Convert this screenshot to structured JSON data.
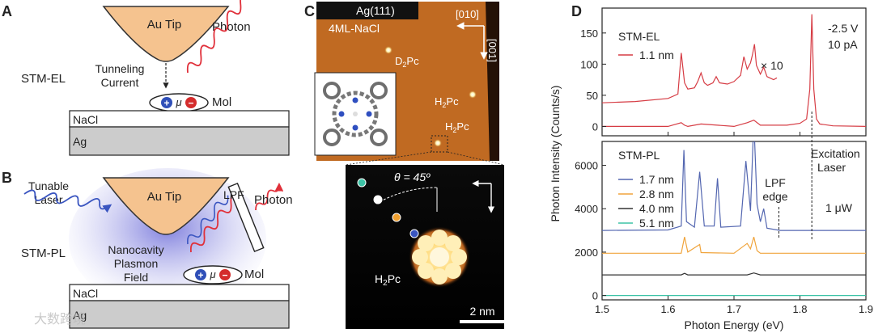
{
  "panels": {
    "A": {
      "letter": "A",
      "tip": "Au Tip",
      "photon": "Photon",
      "mode": "STM-EL",
      "tunneling_line1": "Tunneling",
      "tunneling_line2": "Current",
      "mu": "μ",
      "plus": "+",
      "minus": "−",
      "mol": "Mol",
      "nacl": "NaCl",
      "ag": "Ag"
    },
    "B": {
      "letter": "B",
      "tunable_line1": "Tunable",
      "tunable_line2": "Laser",
      "tip": "Au Tip",
      "lpf": "LPF",
      "photon": "Photon",
      "mode": "STM-PL",
      "nanocavity_line1": "Nanocavity",
      "nanocavity_line2": "Plasmon",
      "nanocavity_line3": "Field",
      "mu": "μ",
      "plus": "+",
      "minus": "−",
      "mol": "Mol",
      "nacl": "NaCl",
      "ag": "Ag"
    },
    "C": {
      "letter": "C",
      "substrate": "Ag(111)",
      "layer": "4ML-NaCl",
      "dir_x": "[010]",
      "dir_y": "[001]",
      "label_d2pc": "D",
      "label_d2pc_sub": "2",
      "label_d2pc_end": "Pc",
      "label_h2pc_a": "H",
      "label_h2pc_a_sub": "2",
      "label_h2pc_a_end": "Pc",
      "label_h2pc_b": "H",
      "label_h2pc_b_sub": "2",
      "label_h2pc_b_end": "Pc",
      "theta": "θ = 45º",
      "zoom_label": "H",
      "zoom_label_sub": "2",
      "zoom_label_end": "Pc",
      "scale_bar": "2 nm",
      "dot_colors": [
        "#3dc3a6",
        "#ffffff",
        "#f0a030",
        "#3a55c0",
        "#e0303a"
      ]
    },
    "D": {
      "letter": "D",
      "el_title": "STM-EL",
      "el_series": "1.1 nm",
      "el_conditions_1": "-2.5 V",
      "el_conditions_2": "10 pA",
      "times10": "× 10",
      "pl_title": "STM-PL",
      "pl_power": "1 μW",
      "lpf_line1": "LPF",
      "lpf_line2": "edge",
      "exc_line1": "Excitation",
      "exc_line2": "Laser",
      "ylabel": "Photon Intensity (Counts/s)",
      "xlabel": "Photon Energy (eV)"
    }
  },
  "watermark": "大数跨境",
  "chart_data": {
    "type": "line",
    "xlabel": "Photon Energy (eV)",
    "ylabel": "Photon Intensity (Counts/s)",
    "xlim": [
      1.5,
      1.9
    ],
    "x_ticks": [
      "1.5",
      "1.6",
      "1.7",
      "1.8",
      "1.9"
    ],
    "el_panel": {
      "ylim": [
        -15,
        190
      ],
      "y_ticks": [
        "0",
        "50",
        "100",
        "150"
      ],
      "series": [
        {
          "name": "1.1 nm",
          "color": "#d63c44",
          "x": [
            1.5,
            1.55,
            1.6,
            1.615,
            1.62,
            1.625,
            1.63,
            1.64,
            1.645,
            1.65,
            1.655,
            1.66,
            1.668,
            1.673,
            1.678,
            1.69,
            1.7,
            1.71,
            1.715,
            1.72,
            1.725,
            1.728,
            1.731,
            1.734,
            1.74,
            1.745,
            1.75,
            1.76,
            1.765
          ],
          "y": [
            38,
            40,
            45,
            52,
            118,
            70,
            60,
            62,
            72,
            86,
            70,
            66,
            70,
            80,
            70,
            68,
            72,
            82,
            112,
            92,
            102,
            115,
            132,
            98,
            84,
            95,
            80,
            75,
            78
          ],
          "scale_note": "× 10"
        },
        {
          "name": "1.1 nm",
          "color": "#d63c44",
          "x": [
            1.5,
            1.6,
            1.62,
            1.625,
            1.63,
            1.65,
            1.7,
            1.72,
            1.73,
            1.74,
            1.78,
            1.8,
            1.81,
            1.815,
            1.818,
            1.821,
            1.825,
            1.83,
            1.85,
            1.9
          ],
          "y": [
            0,
            0,
            6,
            2,
            0,
            4,
            0,
            6,
            10,
            2,
            2,
            5,
            12,
            60,
            180,
            60,
            12,
            4,
            1,
            0
          ]
        }
      ],
      "annotations": [
        "-2.5 V",
        "10 pA",
        "× 10"
      ]
    },
    "pl_panel": {
      "ylim": [
        -200,
        7100
      ],
      "y_ticks": [
        "0",
        "2000",
        "4000",
        "6000"
      ],
      "series": [
        {
          "name": "1.7 nm",
          "color": "#5366b0",
          "offset": 3000,
          "x": [
            1.5,
            1.6,
            1.62,
            1.624,
            1.628,
            1.64,
            1.648,
            1.655,
            1.67,
            1.675,
            1.68,
            1.71,
            1.718,
            1.725,
            1.73,
            1.735,
            1.74,
            1.745,
            1.75,
            1.77,
            1.9
          ],
          "y": [
            0,
            20,
            200,
            3700,
            400,
            150,
            2700,
            200,
            200,
            2400,
            150,
            200,
            3200,
            900,
            5100,
            1200,
            400,
            1000,
            100,
            0,
            0
          ]
        },
        {
          "name": "2.8 nm",
          "color": "#f0a43c",
          "offset": 1950,
          "x": [
            1.5,
            1.62,
            1.625,
            1.63,
            1.648,
            1.65,
            1.7,
            1.72,
            1.725,
            1.73,
            1.735,
            1.74,
            1.77,
            1.9
          ],
          "y": [
            0,
            0,
            750,
            50,
            400,
            30,
            0,
            450,
            200,
            750,
            120,
            0,
            0,
            0
          ]
        },
        {
          "name": "4.0 nm",
          "color": "#333333",
          "offset": 950,
          "x": [
            1.5,
            1.62,
            1.625,
            1.63,
            1.72,
            1.73,
            1.74,
            1.77,
            1.9
          ],
          "y": [
            0,
            0,
            70,
            0,
            0,
            90,
            0,
            0,
            0
          ]
        },
        {
          "name": "5.1 nm",
          "color": "#3dc3a6",
          "offset": 0,
          "x": [
            1.5,
            1.9
          ],
          "y": [
            0,
            0
          ]
        }
      ],
      "annotations": [
        "1 μW",
        "LPF edge",
        "Excitation Laser"
      ]
    },
    "markers": [
      {
        "label": "LPF edge",
        "x": 1.768
      },
      {
        "label": "Excitation Laser",
        "x": 1.818
      }
    ]
  }
}
